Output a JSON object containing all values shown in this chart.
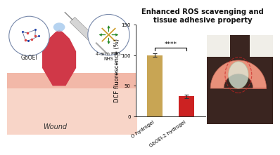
{
  "title": "Enhanced ROS scavenging and\ntissue adhesive property",
  "title_fontsize": 7.2,
  "bar_categories": [
    "O hydrogel",
    "GbOEI-2 hydrogel"
  ],
  "bar_values": [
    100,
    33
  ],
  "bar_errors": [
    3,
    3
  ],
  "bar_colors": [
    "#C8A554",
    "#CC2222"
  ],
  "ylabel": "DCF fluorescence (%)",
  "ylabel_fontsize": 6.0,
  "ylim": [
    0,
    150
  ],
  "yticks": [
    0,
    50,
    100,
    150
  ],
  "significance": "****",
  "sig_fontsize": 6.5,
  "tick_fontsize": 5.0,
  "background_color": "#ffffff",
  "label_fontsize": 5.0,
  "skin_bottom_color": "#F8D5C8",
  "skin_top_color": "#F2B8A8",
  "wound_color": "#D03848",
  "drop_color": "#AACCEE",
  "circle_edge_color": "#7788AA",
  "syringe_color": "#D8D8D8",
  "gbOEI_text_color": "#334466",
  "wound_label_color": "#333333"
}
